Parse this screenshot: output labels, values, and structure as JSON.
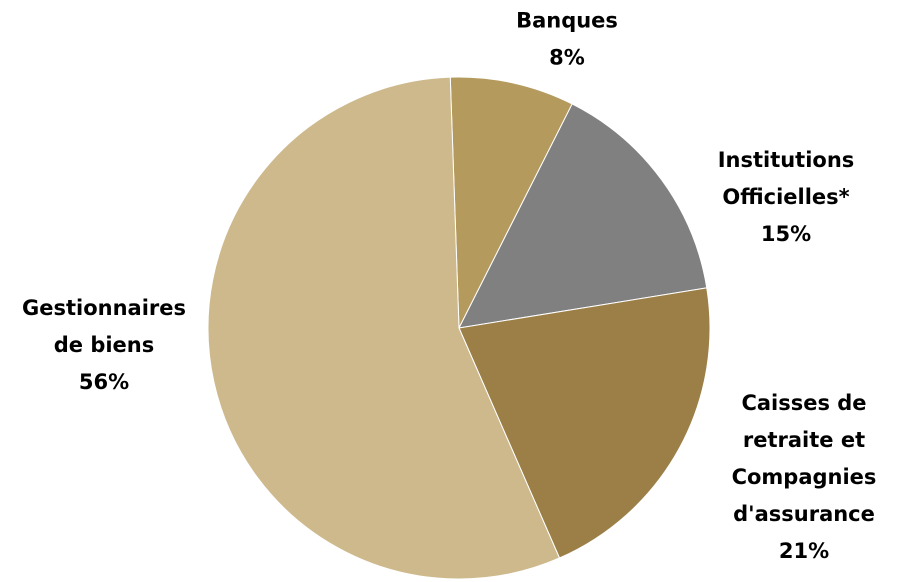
{
  "chart_data": {
    "type": "pie",
    "title": "",
    "legend": "none",
    "start_angle_deg": -2,
    "direction": "clockwise",
    "slices": [
      {
        "name": "Banques",
        "value": 8,
        "value_label": "8%",
        "label_lines": [
          "Banques",
          "8%"
        ],
        "color": "#B59A5D"
      },
      {
        "name": "Institutions Officielles*",
        "value": 15,
        "value_label": "15%",
        "label_lines": [
          "Institutions",
          "Officielles*",
          "15%"
        ],
        "color": "#808080"
      },
      {
        "name": "Caisses de retraite et Compagnies d'assurance",
        "value": 21,
        "value_label": "21%",
        "label_lines": [
          "Caisses de",
          "retraite et",
          "Compagnies",
          "d'assurance",
          "21%"
        ],
        "color": "#9B7F47"
      },
      {
        "name": "Gestionnaires de biens",
        "value": 56,
        "value_label": "56%",
        "label_lines": [
          "Gestionnaires",
          "de biens",
          "56%"
        ],
        "color": "#CDB98C"
      }
    ]
  }
}
